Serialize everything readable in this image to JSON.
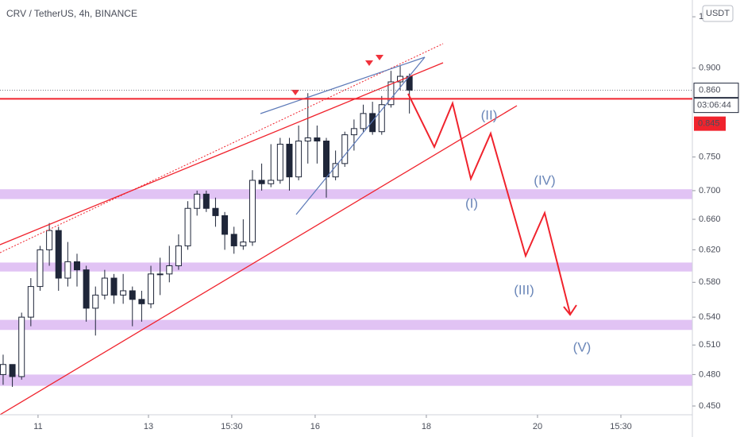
{
  "chart_data": {
    "type": "candlestick",
    "title": "CRV / TetherUS, 4h, BINANCE",
    "currency": "USDT",
    "log_scale": true,
    "x": [
      0,
      1,
      2,
      3,
      4,
      5,
      6,
      7,
      8,
      9,
      10,
      11,
      12,
      13,
      14,
      15,
      16,
      17,
      18,
      19,
      20,
      21,
      22,
      23,
      24,
      25,
      26,
      27,
      28,
      29,
      30,
      31,
      32,
      33,
      34,
      35,
      36,
      37,
      38,
      39,
      40,
      41,
      42,
      43,
      44
    ],
    "open": [
      0.48,
      0.49,
      0.478,
      0.54,
      0.575,
      0.62,
      0.645,
      0.585,
      0.605,
      0.595,
      0.55,
      0.565,
      0.585,
      0.565,
      0.57,
      0.56,
      0.555,
      0.59,
      0.59,
      0.6,
      0.625,
      0.675,
      0.695,
      0.675,
      0.665,
      0.64,
      0.625,
      0.63,
      0.715,
      0.71,
      0.715,
      0.77,
      0.72,
      0.775,
      0.78,
      0.775,
      0.72,
      0.74,
      0.785,
      0.795,
      0.82,
      0.79,
      0.835,
      0.875,
      0.885
    ],
    "high": [
      0.5,
      0.49,
      0.545,
      0.585,
      0.625,
      0.655,
      0.65,
      0.63,
      0.615,
      0.6,
      0.575,
      0.595,
      0.59,
      0.59,
      0.575,
      0.57,
      0.6,
      0.61,
      0.625,
      0.64,
      0.685,
      0.7,
      0.7,
      0.69,
      0.67,
      0.65,
      0.66,
      0.73,
      0.74,
      0.77,
      0.78,
      0.78,
      0.8,
      0.855,
      0.8,
      0.78,
      0.76,
      0.79,
      0.81,
      0.835,
      0.84,
      0.85,
      0.895,
      0.905,
      0.89
    ],
    "low": [
      0.47,
      0.468,
      0.475,
      0.53,
      0.57,
      0.6,
      0.57,
      0.575,
      0.575,
      0.535,
      0.52,
      0.56,
      0.555,
      0.555,
      0.53,
      0.535,
      0.55,
      0.565,
      0.58,
      0.595,
      0.62,
      0.665,
      0.67,
      0.65,
      0.62,
      0.615,
      0.62,
      0.625,
      0.7,
      0.705,
      0.71,
      0.7,
      0.715,
      0.74,
      0.74,
      0.69,
      0.715,
      0.735,
      0.76,
      0.79,
      0.785,
      0.785,
      0.83,
      0.86,
      0.82
    ],
    "close": [
      0.49,
      0.478,
      0.54,
      0.575,
      0.62,
      0.645,
      0.585,
      0.605,
      0.595,
      0.55,
      0.565,
      0.585,
      0.565,
      0.57,
      0.56,
      0.555,
      0.59,
      0.59,
      0.6,
      0.625,
      0.675,
      0.695,
      0.675,
      0.665,
      0.64,
      0.625,
      0.63,
      0.715,
      0.71,
      0.715,
      0.77,
      0.72,
      0.775,
      0.78,
      0.775,
      0.72,
      0.74,
      0.785,
      0.795,
      0.82,
      0.79,
      0.835,
      0.875,
      0.885,
      0.86
    ],
    "up_color": "#ffffff",
    "down_color": "#1f2639",
    "edge_color": "#1f2639",
    "xlim": [
      -0.34,
      74.64
    ],
    "xticks": [
      {
        "value": 3.78,
        "label": "11"
      },
      {
        "value": 15.74,
        "label": "13"
      },
      {
        "value": 24.76,
        "label": "15:30"
      },
      {
        "value": 33.79,
        "label": "16"
      },
      {
        "value": 45.83,
        "label": "18"
      },
      {
        "value": 57.87,
        "label": "20"
      },
      {
        "value": 66.9,
        "label": "15:30"
      }
    ],
    "ylim": [
      0.442,
      1.035
    ],
    "yticks": [
      1,
      {
        "value": 0.9,
        "label": "0.900"
      },
      {
        "value": 0.75,
        "label": "0.750"
      },
      {
        "value": 0.7,
        "label": "0.700"
      },
      {
        "value": 0.66,
        "label": "0.660"
      },
      {
        "value": 0.62,
        "label": "0.620"
      },
      {
        "value": 0.58,
        "label": "0.580"
      },
      {
        "value": 0.54,
        "label": "0.540"
      },
      {
        "value": 0.51,
        "label": "0.510"
      },
      {
        "value": 0.48,
        "label": "0.480"
      },
      {
        "value": 0.45,
        "label": "0.450"
      }
    ],
    "zones": [
      [
        0.688,
        0.702
      ],
      [
        0.593,
        0.604
      ],
      [
        0.526,
        0.537
      ],
      [
        0.469,
        0.48
      ]
    ],
    "zone_color": "#dcb8f2",
    "last_price": {
      "value": 0.86,
      "label": "0.860"
    },
    "countdown": "03:06:44",
    "level": {
      "value": 0.845,
      "label": "0.845"
    },
    "level_color": "#f0232d",
    "annotations": [
      "(I)",
      "(II)",
      "(III)",
      "(IV)",
      "(V)"
    ]
  }
}
